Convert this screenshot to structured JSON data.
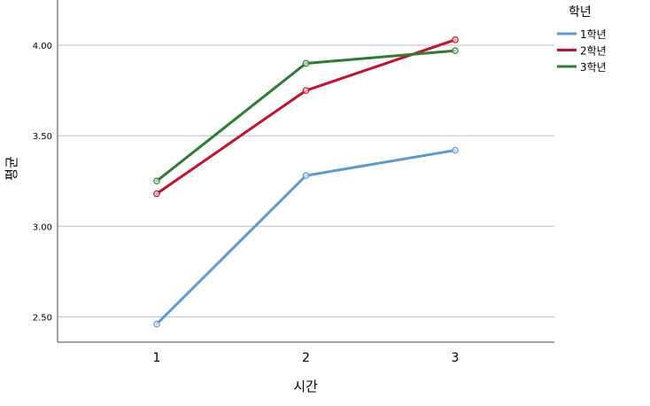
{
  "chart_data": {
    "type": "line",
    "title": "",
    "xlabel": "시간",
    "ylabel": "평균",
    "categories": [
      "1",
      "2",
      "3"
    ],
    "ylim": [
      2.36,
      4.25
    ],
    "yticks": [
      "2.50",
      "3.00",
      "3.50",
      "4.00"
    ],
    "grid": true,
    "legend": {
      "title": "학년",
      "position": "top-right"
    },
    "series": [
      {
        "name": "1학년",
        "color": "#5b9bd5",
        "values": [
          2.46,
          3.28,
          3.42
        ]
      },
      {
        "name": "2학년",
        "color": "#c8102e",
        "values": [
          3.18,
          3.75,
          4.03
        ]
      },
      {
        "name": "3학년",
        "color": "#2e7d32",
        "values": [
          3.25,
          3.9,
          3.97
        ]
      }
    ]
  }
}
